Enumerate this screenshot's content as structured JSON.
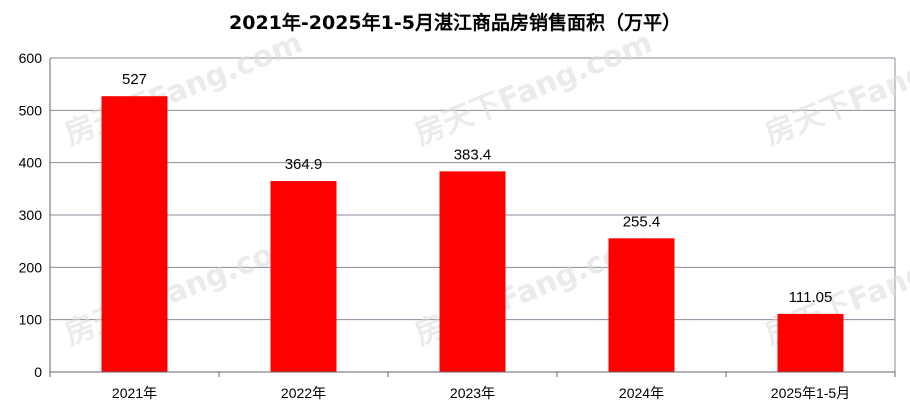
{
  "chart_data": {
    "type": "bar",
    "title": "2021年-2025年1-5月湛江商品房销售面积（万平）",
    "categories": [
      "2021年",
      "2022年",
      "2023年",
      "2024年",
      "2025年1-5月"
    ],
    "values": [
      527,
      364.9,
      383.4,
      255.4,
      111.05
    ],
    "data_labels": [
      "527",
      "364.9",
      "383.4",
      "255.4",
      "111.05"
    ],
    "ylim": [
      0,
      600
    ],
    "yticks": [
      0,
      100,
      200,
      300,
      400,
      500,
      600
    ],
    "grid": true,
    "bar_color": "#ff0000",
    "grid_color": "#8a8a9a"
  },
  "watermark": "房天下Fang.com"
}
